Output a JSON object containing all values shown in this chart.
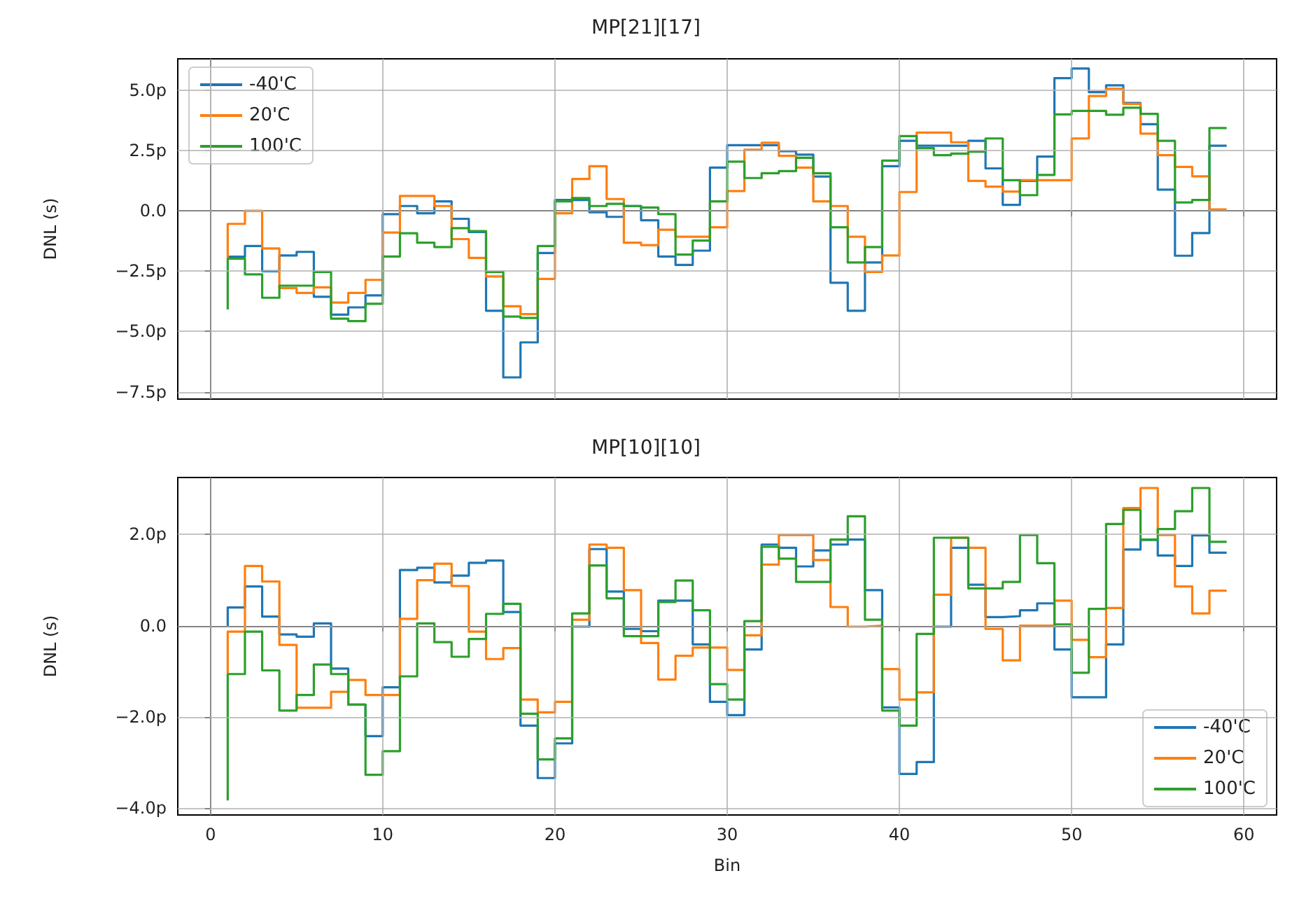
{
  "chart_data": [
    {
      "type": "step",
      "title": "MP[21][17]",
      "ylabel": "DNL (s)",
      "x": [
        1,
        2,
        3,
        4,
        5,
        6,
        7,
        8,
        9,
        10,
        11,
        12,
        13,
        14,
        15,
        16,
        17,
        18,
        19,
        20,
        21,
        22,
        23,
        24,
        25,
        26,
        27,
        28,
        29,
        30,
        31,
        32,
        33,
        34,
        35,
        36,
        37,
        38,
        39,
        40,
        41,
        42,
        43,
        44,
        45,
        46,
        47,
        48,
        49,
        50,
        51,
        52,
        53,
        54,
        55,
        56,
        57,
        58,
        59
      ],
      "series": [
        {
          "name": "-40'C",
          "color": "#1f77b4",
          "values": [
            -1.9,
            -1.9,
            -1.46,
            -2.5,
            -1.85,
            -1.7,
            -3.56,
            -4.3,
            -4.0,
            -3.5,
            -0.14,
            0.2,
            -0.1,
            0.39,
            -0.33,
            -0.88,
            -4.14,
            -6.9,
            -5.45,
            -1.75,
            0.45,
            0.45,
            -0.06,
            -0.25,
            0.2,
            -0.39,
            -1.89,
            -2.24,
            -1.65,
            1.79,
            2.72,
            2.72,
            2.72,
            2.47,
            2.33,
            1.42,
            -2.98,
            -4.14,
            -2.14,
            1.85,
            2.9,
            2.7,
            2.7,
            2.7,
            2.9,
            1.76,
            0.25,
            1.24,
            2.25,
            5.5,
            5.9,
            4.92,
            5.2,
            4.47,
            3.59,
            0.88,
            -1.86,
            -0.92,
            2.7
          ]
        },
        {
          "name": "20'C",
          "color": "#ff7f0e",
          "values": [
            -1.95,
            -0.54,
            0.0,
            -1.56,
            -3.2,
            -3.4,
            -3.17,
            -3.8,
            -3.4,
            -2.86,
            -0.9,
            0.62,
            0.62,
            0.2,
            -1.17,
            -1.95,
            -2.72,
            -3.95,
            -4.28,
            -2.82,
            -0.1,
            1.32,
            1.85,
            0.49,
            -1.32,
            -1.42,
            -0.78,
            -1.07,
            -1.07,
            -0.68,
            0.82,
            2.53,
            2.82,
            2.28,
            1.79,
            0.39,
            0.2,
            -1.07,
            -2.53,
            -1.85,
            0.78,
            3.24,
            3.24,
            2.84,
            1.24,
            1.0,
            0.8,
            1.27,
            1.27,
            1.27,
            3.0,
            4.76,
            5.06,
            4.43,
            3.2,
            2.31,
            1.82,
            1.43,
            0.06
          ]
        },
        {
          "name": "100'C",
          "color": "#2ca02c",
          "values": [
            -4.09,
            -1.98,
            -2.63,
            -3.6,
            -3.1,
            -3.1,
            -2.53,
            -4.47,
            -4.57,
            -3.85,
            -1.89,
            -0.93,
            -1.32,
            -1.5,
            -0.72,
            -0.84,
            -2.53,
            -4.38,
            -4.44,
            -1.46,
            0.39,
            0.53,
            0.2,
            0.29,
            0.2,
            0.14,
            -0.14,
            -1.81,
            -1.23,
            0.39,
            2.04,
            1.36,
            1.56,
            1.65,
            2.2,
            1.56,
            -0.68,
            -2.14,
            -1.5,
            2.08,
            3.1,
            2.6,
            2.31,
            2.37,
            2.45,
            3.0,
            1.27,
            0.65,
            1.49,
            4.0,
            4.14,
            4.14,
            3.98,
            4.27,
            4.02,
            2.9,
            0.35,
            0.45,
            3.43
          ]
        }
      ],
      "xlim": [
        -1.9,
        61.9
      ],
      "xticks": [
        0,
        10,
        20,
        30,
        40,
        50,
        60
      ],
      "ylim": [
        -7.8,
        6.3
      ],
      "yticks": [
        {
          "value": -7.5,
          "label": "−7.5p"
        },
        {
          "value": -5,
          "label": "−5.0p"
        },
        {
          "value": -2.5,
          "label": "−2.5p"
        },
        {
          "value": 0,
          "label": "0.0"
        },
        {
          "value": 2.5,
          "label": "2.5p"
        },
        {
          "value": 5,
          "label": "5.0p"
        }
      ],
      "tick_labels": "y",
      "grid": true,
      "legend": "top left",
      "marker": "none",
      "line_style": "solid"
    },
    {
      "type": "step",
      "title": "MP[10][10]",
      "xlabel": "Bin",
      "ylabel": "DNL (s)",
      "x": [
        1,
        2,
        3,
        4,
        5,
        6,
        7,
        8,
        9,
        10,
        11,
        12,
        13,
        14,
        15,
        16,
        17,
        18,
        19,
        20,
        21,
        22,
        23,
        24,
        25,
        26,
        27,
        28,
        29,
        30,
        31,
        32,
        33,
        34,
        35,
        36,
        37,
        38,
        39,
        40,
        41,
        42,
        43,
        44,
        45,
        46,
        47,
        48,
        49,
        50,
        51,
        52,
        53,
        54,
        55,
        56,
        57,
        58,
        59
      ],
      "series": [
        {
          "name": "-40'C",
          "color": "#1f77b4",
          "values": [
            -0.03,
            0.4,
            0.86,
            0.2,
            -0.19,
            -0.24,
            0.05,
            -0.94,
            -1.73,
            -2.42,
            -1.35,
            1.22,
            1.27,
            0.95,
            1.1,
            1.38,
            1.43,
            0.3,
            -2.19,
            -3.34,
            -2.58,
            -0.02,
            1.68,
            0.75,
            -0.07,
            -0.12,
            0.55,
            0.55,
            -0.41,
            -1.67,
            -1.96,
            -0.52,
            1.78,
            1.71,
            1.3,
            1.65,
            1.78,
            1.89,
            0.78,
            -1.79,
            -3.25,
            -2.99,
            -0.02,
            1.71,
            0.9,
            0.19,
            0.21,
            0.34,
            0.49,
            -0.52,
            -1.57,
            -1.57,
            -0.41,
            1.67,
            1.88,
            1.54,
            1.31,
            1.98,
            1.6
          ]
        },
        {
          "name": "20'C",
          "color": "#ff7f0e",
          "values": [
            -1.04,
            -0.13,
            1.31,
            0.97,
            -0.42,
            -1.8,
            -1.8,
            -1.45,
            -1.19,
            -1.52,
            -1.52,
            0.15,
            1.0,
            1.36,
            0.87,
            -0.13,
            -0.73,
            -0.49,
            -1.62,
            -1.9,
            -1.67,
            0.13,
            1.78,
            1.71,
            0.78,
            -0.38,
            -1.18,
            -0.66,
            -0.48,
            -0.48,
            -0.97,
            -0.21,
            1.34,
            1.99,
            1.99,
            1.44,
            0.41,
            -0.02,
            0,
            -0.95,
            -1.62,
            -1.46,
            0.68,
            1.93,
            1.71,
            -0.07,
            -0.76,
            0,
            0,
            0.55,
            -0.31,
            -0.69,
            0.39,
            2.58,
            3.02,
            1.99,
            0.86,
            0.27,
            0.77
          ]
        },
        {
          "name": "100'C",
          "color": "#2ca02c",
          "values": [
            -3.83,
            -1.06,
            -0.13,
            -0.98,
            -1.86,
            -1.52,
            -0.85,
            -1.06,
            -1.73,
            -3.27,
            -2.75,
            -1.11,
            0.05,
            -0.36,
            -0.68,
            -0.29,
            0.26,
            0.48,
            -1.93,
            -2.93,
            -2.47,
            0.27,
            1.32,
            0.6,
            -0.23,
            -0.23,
            0.52,
            0.99,
            0.34,
            -1.28,
            -1.62,
            0.1,
            1.73,
            1.47,
            0.96,
            0.96,
            1.89,
            2.4,
            0.13,
            -1.86,
            -2.19,
            -0.18,
            1.93,
            1.93,
            0.82,
            0.82,
            0.96,
            1.99,
            1.37,
            0.03,
            -1.03,
            0.37,
            2.23,
            2.54,
            1.89,
            2.12,
            2.51,
            3.02,
            1.84
          ]
        }
      ],
      "xlim": [
        -1.9,
        61.9
      ],
      "xticks": [
        0,
        10,
        20,
        30,
        40,
        50,
        60
      ],
      "ylim": [
        -4.15,
        3.25
      ],
      "yticks": [
        {
          "value": -4,
          "label": "−4.0p"
        },
        {
          "value": -2,
          "label": "−2.0p"
        },
        {
          "value": 0,
          "label": "0.0"
        },
        {
          "value": 2,
          "label": "2.0p"
        }
      ],
      "grid": true,
      "legend": "bottom right",
      "marker": "none",
      "line_style": "solid"
    }
  ]
}
